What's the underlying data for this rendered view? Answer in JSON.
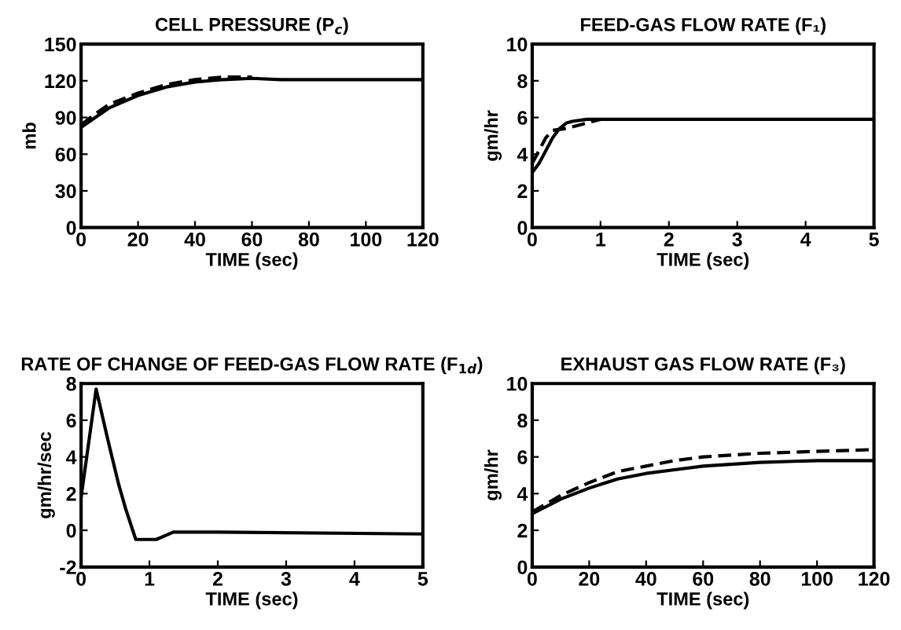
{
  "chart_data": [
    {
      "type": "line",
      "title": "CELL PRESSURE (P$_{c}$)",
      "xlabel": "TIME (sec)",
      "ylabel": "mb",
      "xlim": [
        0,
        120
      ],
      "xticks": [
        0,
        20,
        40,
        60,
        80,
        100,
        120
      ],
      "ylim": [
        0,
        150
      ],
      "yticks": [
        0,
        30,
        60,
        90,
        120,
        150
      ],
      "grid": false,
      "legend": false,
      "series": [
        {
          "color": "#000000",
          "line_style": "solid",
          "x": [
            0,
            5,
            10,
            20,
            30,
            40,
            50,
            60,
            70,
            120
          ],
          "values": [
            82,
            90,
            98,
            108,
            115,
            119,
            121,
            122,
            121,
            121
          ]
        },
        {
          "color": "#000000",
          "line_style": "dashed",
          "x": [
            0,
            5,
            10,
            20,
            30,
            40,
            50,
            60
          ],
          "values": [
            84,
            93,
            101,
            110,
            117,
            121,
            123,
            123
          ]
        }
      ]
    },
    {
      "type": "line",
      "title": "FEED-GAS FLOW RATE (F₁)",
      "xlabel": "TIME (sec)",
      "ylabel": "gm/hr",
      "xlim": [
        0,
        5
      ],
      "xticks": [
        0,
        1,
        2,
        3,
        4,
        5
      ],
      "ylim": [
        0,
        10
      ],
      "yticks": [
        0,
        2,
        4,
        6,
        8,
        10
      ],
      "grid": false,
      "legend": false,
      "series": [
        {
          "color": "#000000",
          "line_style": "solid",
          "x": [
            0,
            0.1,
            0.2,
            0.3,
            0.4,
            0.5,
            0.6,
            0.8,
            1,
            5
          ],
          "values": [
            3,
            3.5,
            4.2,
            4.9,
            5.4,
            5.7,
            5.8,
            5.9,
            5.9,
            5.9
          ]
        },
        {
          "color": "#000000",
          "line_style": "dashed",
          "x": [
            0,
            0.1,
            0.2,
            0.3,
            0.5,
            0.7,
            0.9,
            1
          ],
          "values": [
            3.5,
            4.2,
            4.9,
            5.3,
            5.4,
            5.6,
            5.8,
            5.9
          ]
        }
      ]
    },
    {
      "type": "line",
      "title": "RATE OF CHANGE OF FEED-GAS FLOW RATE (F$_{1d}$)",
      "xlabel": "TIME (sec)",
      "ylabel": "gm/hr/sec",
      "xlim": [
        0,
        5
      ],
      "xticks": [
        0,
        1,
        2,
        3,
        4,
        5
      ],
      "ylim": [
        -2,
        8
      ],
      "yticks": [
        -2,
        0,
        2,
        4,
        6,
        8
      ],
      "grid": false,
      "legend": false,
      "series": [
        {
          "color": "#000000",
          "line_style": "solid",
          "x": [
            0,
            0.22,
            0.4,
            0.55,
            0.65,
            0.8,
            1.1,
            1.35,
            2,
            5
          ],
          "values": [
            1.8,
            7.7,
            4.8,
            2.5,
            1.2,
            -0.5,
            -0.5,
            -0.1,
            -0.1,
            -0.2
          ]
        }
      ]
    },
    {
      "type": "line",
      "title": "EXHAUST GAS FLOW RATE (F₃)",
      "xlabel": "TIME (sec)",
      "ylabel": "gm/hr",
      "xlim": [
        0,
        120
      ],
      "xticks": [
        0,
        20,
        40,
        60,
        80,
        100,
        120
      ],
      "ylim": [
        0,
        10
      ],
      "yticks": [
        0,
        2,
        4,
        6,
        8,
        10
      ],
      "grid": false,
      "legend": false,
      "series": [
        {
          "color": "#000000",
          "line_style": "solid",
          "x": [
            0,
            10,
            20,
            30,
            40,
            50,
            60,
            80,
            100,
            120
          ],
          "values": [
            2.9,
            3.7,
            4.3,
            4.8,
            5.1,
            5.3,
            5.5,
            5.7,
            5.8,
            5.8
          ]
        },
        {
          "color": "#000000",
          "line_style": "dashed",
          "x": [
            0,
            10,
            20,
            30,
            40,
            50,
            60,
            80,
            100,
            120
          ],
          "values": [
            3.0,
            3.9,
            4.6,
            5.2,
            5.5,
            5.8,
            6.0,
            6.2,
            6.3,
            6.4
          ]
        }
      ]
    }
  ]
}
